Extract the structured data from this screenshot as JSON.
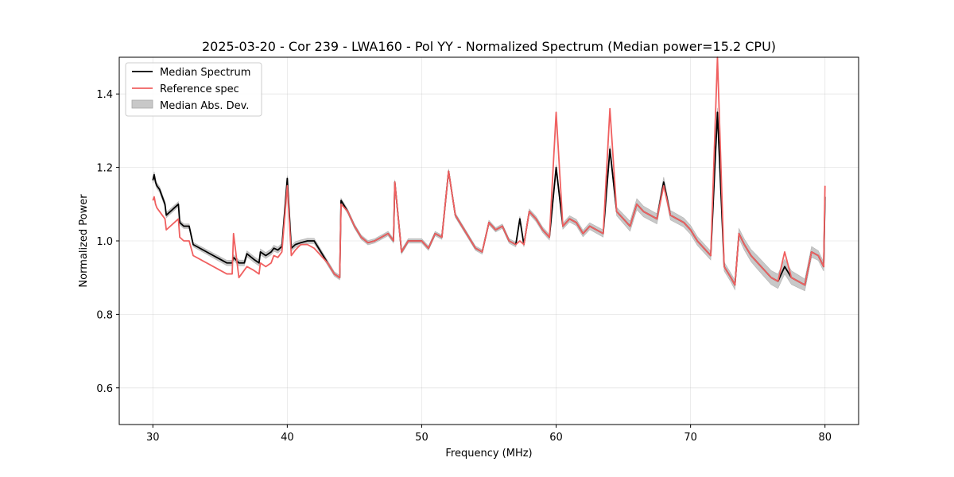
{
  "chart_data": {
    "type": "line",
    "title": "2025-03-20 - Cor 239 - LWA160 - Pol YY - Normalized Spectrum (Median power=15.2 CPU)",
    "xlabel": "Frequency (MHz)",
    "ylabel": "Normalized Power",
    "xlim": [
      27.5,
      82.5
    ],
    "ylim": [
      0.5,
      1.5
    ],
    "x_ticks": [
      30,
      40,
      50,
      60,
      70,
      80
    ],
    "y_ticks": [
      0.6,
      0.8,
      1.0,
      1.2,
      1.4
    ],
    "x_tick_labels": [
      "30",
      "40",
      "50",
      "60",
      "70",
      "80"
    ],
    "y_tick_labels": [
      "0.6",
      "0.8",
      "1.0",
      "1.2",
      "1.4"
    ],
    "grid": true,
    "legend": {
      "position": "top-left",
      "entries": [
        {
          "label": "Median Spectrum",
          "style": "line",
          "color": "#000000"
        },
        {
          "label": "Reference spec",
          "style": "line",
          "color": "#f06060"
        },
        {
          "label": "Median Abs. Dev.",
          "style": "band",
          "color": "#c8c8c8"
        }
      ]
    },
    "series": [
      {
        "name": "Median Spectrum",
        "color": "#000000",
        "x": [
          30.0,
          30.1,
          30.2,
          30.3,
          30.5,
          30.7,
          30.9,
          31.0,
          31.3,
          31.6,
          31.9,
          32.0,
          32.3,
          32.7,
          33.0,
          33.5,
          34.0,
          34.5,
          35.0,
          35.5,
          35.9,
          36.0,
          36.4,
          36.8,
          37.0,
          37.5,
          37.9,
          38.0,
          38.4,
          38.8,
          39.0,
          39.3,
          39.6,
          40.0,
          40.3,
          40.6,
          41.0,
          41.5,
          42.0,
          42.5,
          43.0,
          43.5,
          43.9,
          44.0,
          44.5,
          45.0,
          45.5,
          46.0,
          46.5,
          47.0,
          47.5,
          47.9,
          48.0,
          48.5,
          49.0,
          49.5,
          50.0,
          50.5,
          51.0,
          51.5,
          52.0,
          52.5,
          53.0,
          53.5,
          54.0,
          54.5,
          55.0,
          55.5,
          56.0,
          56.5,
          57.0,
          57.3,
          57.6,
          58.0,
          58.5,
          59.0,
          59.5,
          60.0,
          60.5,
          61.0,
          61.5,
          62.0,
          62.5,
          63.0,
          63.5,
          64.0,
          64.5,
          65.0,
          65.5,
          66.0,
          66.5,
          67.0,
          67.5,
          68.0,
          68.5,
          69.0,
          69.5,
          70.0,
          70.5,
          71.0,
          71.5,
          72.0,
          72.5,
          73.0,
          73.3,
          73.6,
          74.0,
          74.5,
          75.0,
          75.5,
          76.0,
          76.5,
          77.0,
          77.5,
          78.0,
          78.5,
          79.0,
          79.5,
          79.9,
          80.0
        ],
        "values": [
          1.165,
          1.18,
          1.16,
          1.15,
          1.14,
          1.12,
          1.1,
          1.07,
          1.08,
          1.09,
          1.1,
          1.05,
          1.04,
          1.04,
          0.99,
          0.98,
          0.97,
          0.96,
          0.95,
          0.94,
          0.94,
          0.955,
          0.94,
          0.94,
          0.965,
          0.95,
          0.94,
          0.97,
          0.96,
          0.97,
          0.98,
          0.975,
          0.985,
          1.17,
          0.98,
          0.99,
          0.995,
          1.0,
          1.0,
          0.97,
          0.94,
          0.91,
          0.9,
          1.11,
          1.08,
          1.04,
          1.01,
          0.995,
          1.0,
          1.01,
          1.02,
          1.0,
          1.16,
          0.97,
          1.0,
          1.0,
          1.0,
          0.98,
          1.02,
          1.01,
          1.19,
          1.07,
          1.04,
          1.01,
          0.98,
          0.97,
          1.05,
          1.03,
          1.04,
          1.0,
          0.99,
          1.06,
          0.99,
          1.08,
          1.06,
          1.03,
          1.01,
          1.2,
          1.04,
          1.06,
          1.05,
          1.02,
          1.04,
          1.03,
          1.02,
          1.25,
          1.08,
          1.06,
          1.04,
          1.1,
          1.08,
          1.07,
          1.06,
          1.16,
          1.07,
          1.06,
          1.05,
          1.03,
          1.0,
          0.98,
          0.96,
          1.35,
          0.93,
          0.9,
          0.88,
          1.02,
          0.99,
          0.96,
          0.94,
          0.92,
          0.9,
          0.89,
          0.93,
          0.9,
          0.89,
          0.88,
          0.97,
          0.96,
          0.93,
          1.12
        ]
      },
      {
        "name": "Reference spec",
        "color": "#f06060",
        "x": [
          30.0,
          30.1,
          30.2,
          30.3,
          30.5,
          30.7,
          30.9,
          31.0,
          31.3,
          31.6,
          31.9,
          32.0,
          32.3,
          32.7,
          33.0,
          33.5,
          34.0,
          34.5,
          35.0,
          35.5,
          35.9,
          36.0,
          36.4,
          36.8,
          37.0,
          37.5,
          37.9,
          38.0,
          38.4,
          38.8,
          39.0,
          39.3,
          39.6,
          40.0,
          40.3,
          40.6,
          41.0,
          41.5,
          42.0,
          42.5,
          43.0,
          43.5,
          43.9,
          44.0,
          44.5,
          45.0,
          45.5,
          46.0,
          46.5,
          47.0,
          47.5,
          47.9,
          48.0,
          48.5,
          49.0,
          49.5,
          50.0,
          50.5,
          51.0,
          51.5,
          52.0,
          52.5,
          53.0,
          53.5,
          54.0,
          54.5,
          55.0,
          55.5,
          56.0,
          56.5,
          57.0,
          57.3,
          57.6,
          58.0,
          58.5,
          59.0,
          59.5,
          60.0,
          60.5,
          61.0,
          61.5,
          62.0,
          62.5,
          63.0,
          63.5,
          64.0,
          64.5,
          65.0,
          65.5,
          66.0,
          66.5,
          67.0,
          67.5,
          68.0,
          68.5,
          69.0,
          69.5,
          70.0,
          70.5,
          71.0,
          71.5,
          72.0,
          72.5,
          73.0,
          73.3,
          73.6,
          74.0,
          74.5,
          75.0,
          75.5,
          76.0,
          76.5,
          77.0,
          77.5,
          78.0,
          78.5,
          79.0,
          79.5,
          79.9,
          80.0
        ],
        "values": [
          1.11,
          1.12,
          1.1,
          1.09,
          1.08,
          1.07,
          1.06,
          1.03,
          1.04,
          1.05,
          1.06,
          1.01,
          1.0,
          1.0,
          0.96,
          0.95,
          0.94,
          0.93,
          0.92,
          0.91,
          0.91,
          1.02,
          0.9,
          0.92,
          0.93,
          0.92,
          0.91,
          0.94,
          0.93,
          0.94,
          0.96,
          0.955,
          0.97,
          1.15,
          0.96,
          0.975,
          0.99,
          0.99,
          0.98,
          0.96,
          0.94,
          0.91,
          0.9,
          1.1,
          1.08,
          1.04,
          1.01,
          0.995,
          1.0,
          1.01,
          1.02,
          1.0,
          1.16,
          0.97,
          1.0,
          1.0,
          1.0,
          0.98,
          1.02,
          1.01,
          1.19,
          1.07,
          1.04,
          1.01,
          0.98,
          0.97,
          1.05,
          1.03,
          1.04,
          1.0,
          0.99,
          1.0,
          0.99,
          1.08,
          1.06,
          1.03,
          1.01,
          1.35,
          1.04,
          1.06,
          1.05,
          1.02,
          1.04,
          1.03,
          1.02,
          1.36,
          1.08,
          1.06,
          1.04,
          1.1,
          1.08,
          1.07,
          1.06,
          1.15,
          1.07,
          1.06,
          1.05,
          1.03,
          1.0,
          0.98,
          0.96,
          1.5,
          0.93,
          0.9,
          0.88,
          1.02,
          0.99,
          0.96,
          0.94,
          0.92,
          0.9,
          0.89,
          0.97,
          0.9,
          0.89,
          0.88,
          0.97,
          0.96,
          0.93,
          1.15
        ]
      }
    ],
    "band": {
      "name": "Median Abs. Dev.",
      "color": "#c8c8c8",
      "x": [
        30.0,
        33.0,
        37.0,
        40.0,
        44.0,
        50.0,
        56.0,
        60.0,
        64.0,
        66.0,
        70.0,
        73.0,
        75.0,
        77.0,
        80.0
      ],
      "halfwidth": [
        0.008,
        0.006,
        0.008,
        0.008,
        0.006,
        0.006,
        0.006,
        0.008,
        0.01,
        0.015,
        0.012,
        0.012,
        0.018,
        0.02,
        0.012
      ]
    }
  }
}
